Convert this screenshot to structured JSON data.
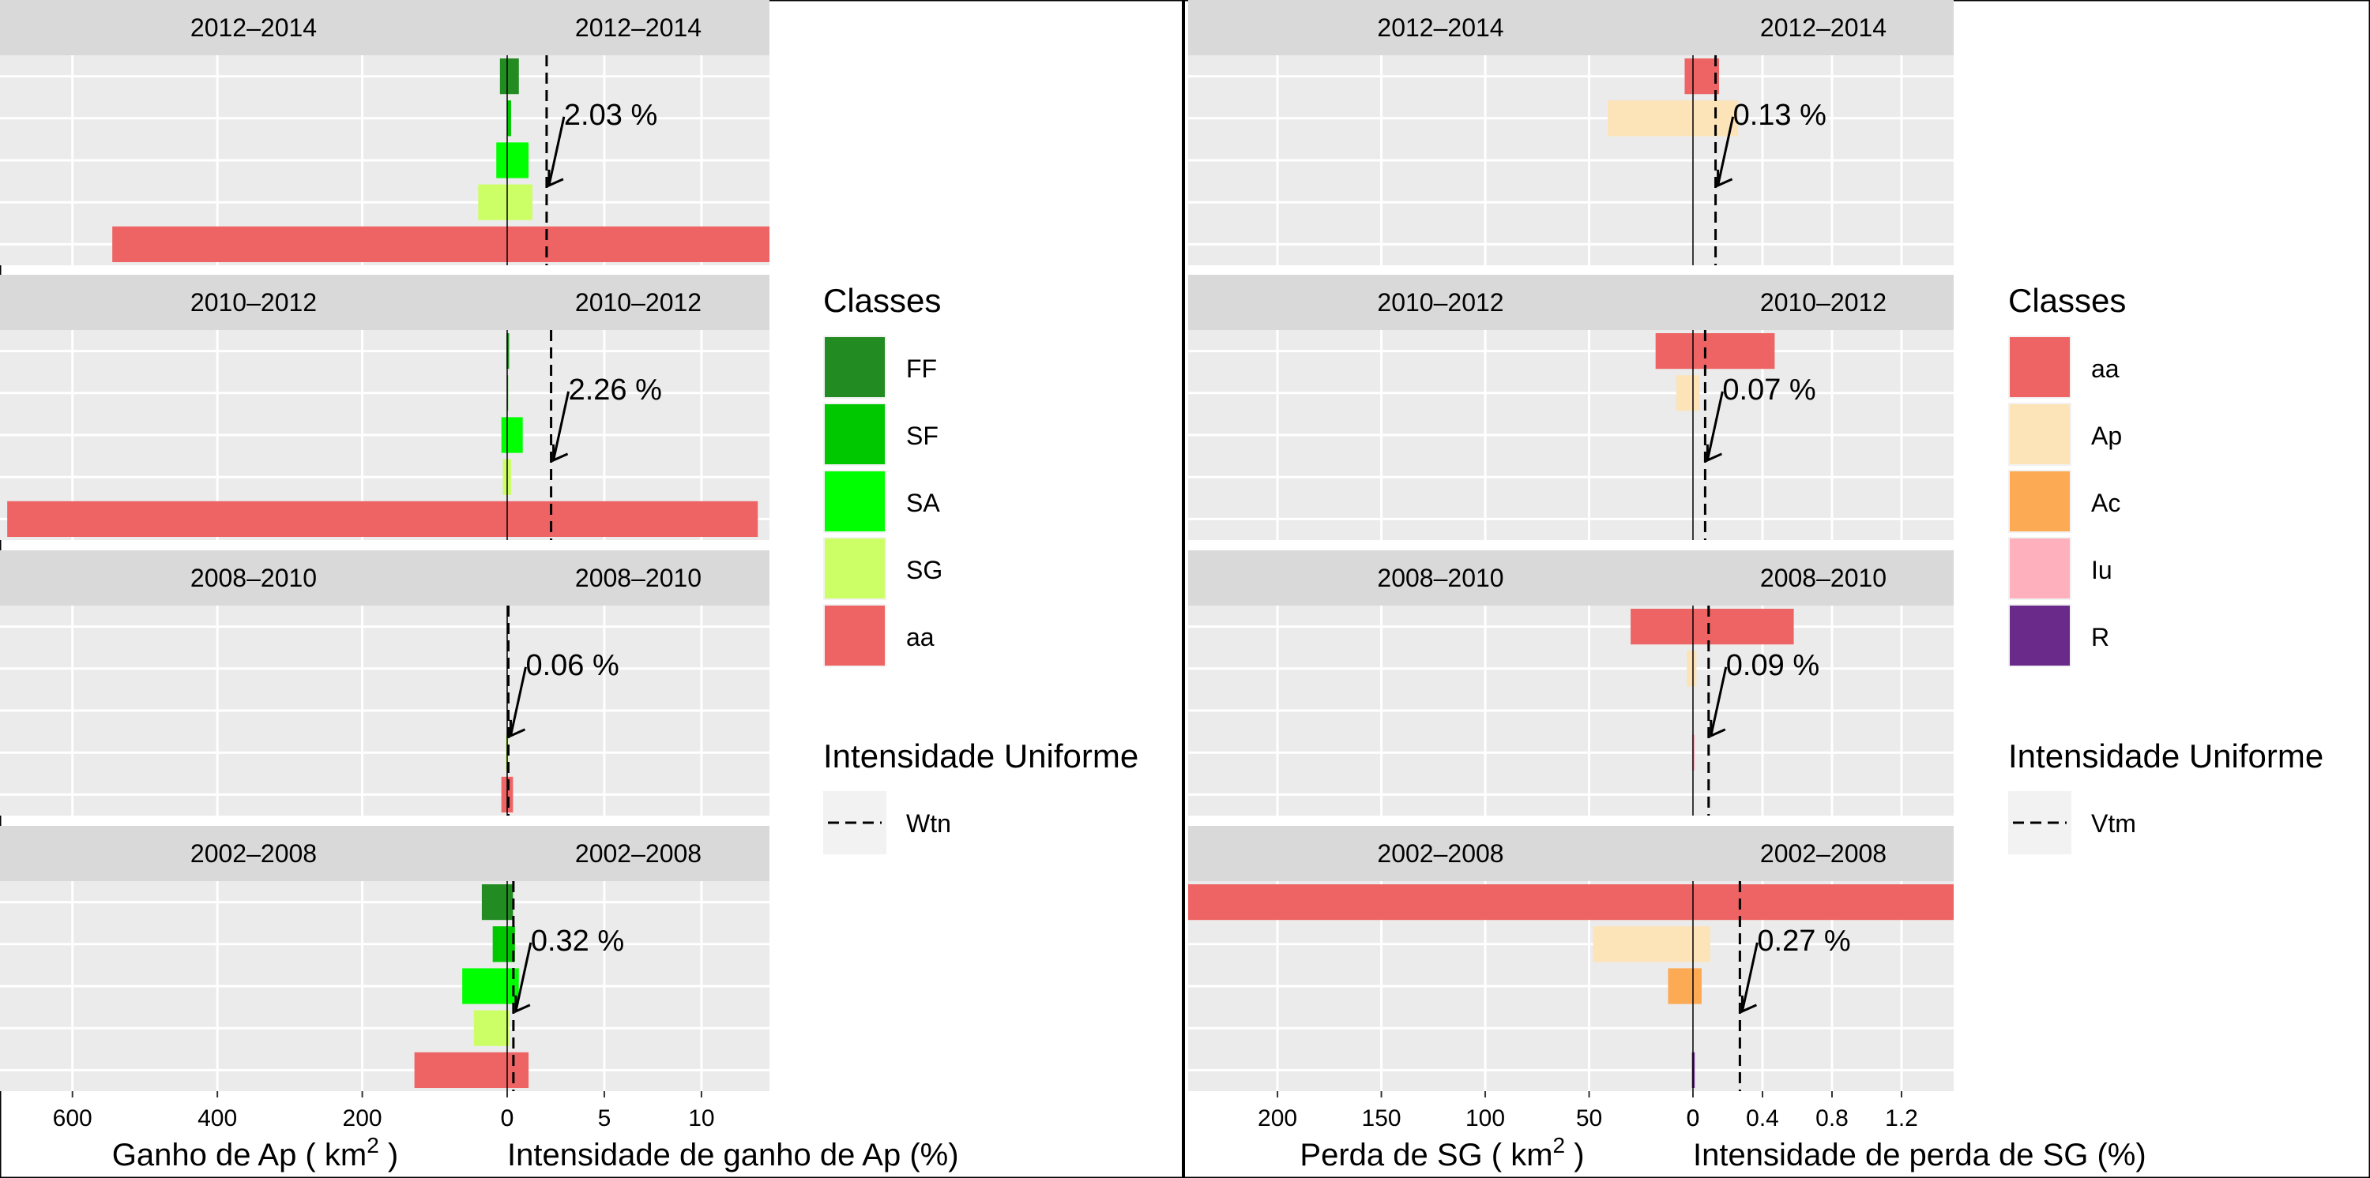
{
  "chart_data": [
    {
      "type": "bar",
      "left_axis_title": "Ganho de Ap ( km",
      "left_axis_title_sup": "2",
      "left_axis_title_end": " )",
      "right_axis_title": "Intensidade de ganho de Ap (%)",
      "left_ticks": [
        600,
        400,
        200,
        0
      ],
      "left_xlim": [
        0,
        700
      ],
      "right_ticks": [
        0,
        5,
        10
      ],
      "right_xlim": [
        0,
        13.5
      ],
      "legend": {
        "title": "Classes",
        "items": [
          {
            "label": "FF",
            "color": "#228B22"
          },
          {
            "label": "SF",
            "color": "#00C800"
          },
          {
            "label": "SA",
            "color": "#00FF00"
          },
          {
            "label": "SG",
            "color": "#CCFF66"
          },
          {
            "label": "aa",
            "color": "#EE6363"
          }
        ],
        "line_title": "Intensidade Uniforme",
        "line_label": "Wtn"
      },
      "categories": [
        "FF",
        "SF",
        "SA",
        "SG",
        "aa"
      ],
      "panels": [
        {
          "period": "2012–2014",
          "uniform": 2.03,
          "uniform_label": "2.03 %",
          "area": [
            10,
            0.5,
            15,
            40,
            545
          ],
          "intensity": [
            0.6,
            0.2,
            1.1,
            1.3,
            13.5
          ]
        },
        {
          "period": "2010–2012",
          "uniform": 2.26,
          "uniform_label": "2.26 %",
          "area": [
            1,
            0.5,
            8,
            6,
            690
          ],
          "intensity": [
            0.1,
            0.05,
            0.8,
            0.2,
            12.9
          ]
        },
        {
          "period": "2008–2010",
          "uniform": 0.06,
          "uniform_label": "0.06 %",
          "area": [
            0,
            0,
            0,
            2,
            8
          ],
          "intensity": [
            0,
            0,
            0,
            0.05,
            0.3
          ]
        },
        {
          "period": "2002–2008",
          "uniform": 0.32,
          "uniform_label": "0.32 %",
          "area": [
            35,
            20,
            62,
            46,
            128
          ],
          "intensity": [
            0.3,
            0.4,
            0.6,
            0.1,
            1.1
          ]
        }
      ]
    },
    {
      "type": "bar",
      "left_axis_title": "Perda de SG ( km",
      "left_axis_title_sup": "2",
      "left_axis_title_end": " )",
      "right_axis_title": "Intensidade de perda de SG (%)",
      "left_ticks": [
        200,
        150,
        100,
        50,
        0
      ],
      "left_xlim": [
        0,
        243
      ],
      "right_ticks": [
        0,
        0.4,
        0.8,
        1.2
      ],
      "right_tick_labels": [
        "0",
        "0.4",
        "0.8",
        "1.2"
      ],
      "right_xlim": [
        0,
        1.5
      ],
      "legend": {
        "title": "Classes",
        "items": [
          {
            "label": "aa",
            "color": "#EE6363"
          },
          {
            "label": "Ap",
            "color": "#FDE3B8"
          },
          {
            "label": "Ac",
            "color": "#FDAA55"
          },
          {
            "label": "Iu",
            "color": "#FEB0BD"
          },
          {
            "label": "R",
            "color": "#6A2A8A"
          }
        ],
        "line_title": "Intensidade Uniforme",
        "line_label": "Vtm"
      },
      "categories": [
        "aa",
        "Ap",
        "Ac",
        "Iu",
        "R"
      ],
      "panels": [
        {
          "period": "2012–2014",
          "uniform": 0.13,
          "uniform_label": "0.13 %",
          "area": [
            4,
            41,
            0,
            0,
            0
          ],
          "intensity": [
            0.15,
            0.26,
            0,
            0,
            0
          ]
        },
        {
          "period": "2010–2012",
          "uniform": 0.07,
          "uniform_label": "0.07 %",
          "area": [
            18,
            8,
            0,
            0,
            0
          ],
          "intensity": [
            0.47,
            0.04,
            0,
            0,
            0
          ]
        },
        {
          "period": "2008–2010",
          "uniform": 0.09,
          "uniform_label": "0.09 %",
          "area": [
            30,
            3,
            0,
            0.5,
            0
          ],
          "intensity": [
            0.58,
            0.02,
            0,
            0.01,
            0
          ]
        },
        {
          "period": "2002–2008",
          "uniform": 0.27,
          "uniform_label": "0.27 %",
          "area": [
            243,
            48,
            12,
            0,
            0.5
          ],
          "intensity": [
            1.5,
            0.1,
            0.05,
            0,
            0.01
          ]
        }
      ]
    }
  ]
}
